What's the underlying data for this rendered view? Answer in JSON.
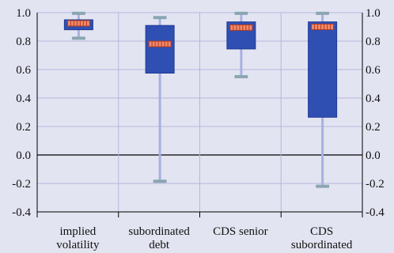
{
  "chart_data": {
    "type": "boxplot",
    "title": "",
    "xlabel": "",
    "ylabel": "",
    "ylim": [
      -0.4,
      1.0
    ],
    "yticks": [
      "1.0",
      "0.8",
      "0.6",
      "0.4",
      "0.2",
      "0.0",
      "-0.2",
      "-0.4"
    ],
    "categories": [
      [
        "implied",
        "volatility"
      ],
      [
        "subordinated",
        "debt"
      ],
      [
        "CDS senior"
      ],
      [
        "CDS",
        "subordinated"
      ]
    ],
    "series": [
      {
        "min": 0.82,
        "q1": 0.88,
        "median": 0.925,
        "q3": 0.95,
        "max": 0.995
      },
      {
        "min": -0.185,
        "q1": 0.575,
        "median": 0.78,
        "q3": 0.91,
        "max": 0.965
      },
      {
        "min": 0.55,
        "q1": 0.745,
        "median": 0.895,
        "q3": 0.935,
        "max": 0.995
      },
      {
        "min": -0.22,
        "q1": 0.265,
        "median": 0.9,
        "q3": 0.935,
        "max": 0.995
      }
    ],
    "grid": true,
    "colors": {
      "background": "#e3e4f2",
      "plot_background": "#e3e4f2",
      "grid": "#b4b6dc",
      "box_fill": "#2f4fb2",
      "box_edge": "#1e3a94",
      "whisker": "#a9b0e0",
      "cap": "#8aa6b2",
      "median_fill": "#f08a6a",
      "median_edge": "#b43a22",
      "axis": "#000000"
    }
  }
}
